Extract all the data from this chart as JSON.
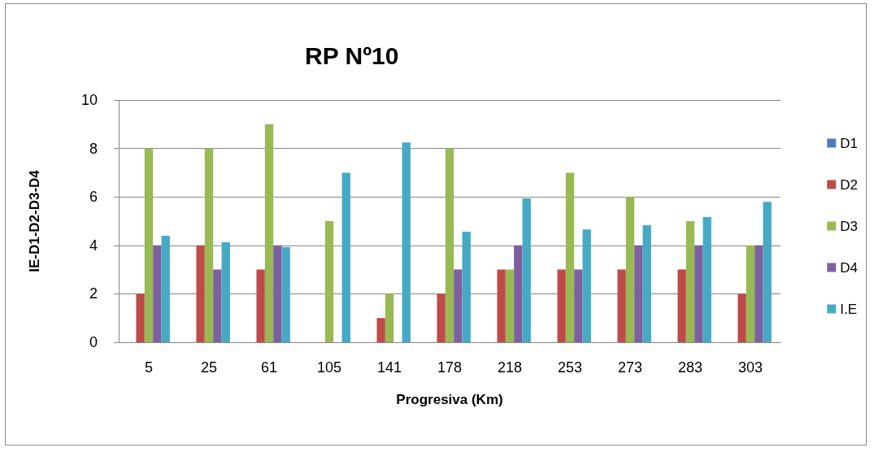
{
  "chart_data": {
    "type": "bar",
    "title": "RP Nº10",
    "xlabel": "Progresiva (Km)",
    "ylabel": "IE-D1-D2-D3-D4",
    "categories": [
      "5",
      "25",
      "61",
      "105",
      "141",
      "178",
      "218",
      "253",
      "273",
      "283",
      "303"
    ],
    "series": [
      {
        "name": "D1",
        "color": "#4a7ebb",
        "values": [
          0,
          0,
          0,
          0,
          0,
          0,
          0,
          0,
          0,
          0,
          0
        ]
      },
      {
        "name": "D2",
        "color": "#be4b48",
        "values": [
          2,
          4,
          3,
          0,
          1,
          2,
          3,
          3,
          3,
          3,
          2
        ]
      },
      {
        "name": "D3",
        "color": "#98b954",
        "values": [
          8,
          8,
          9,
          5,
          2,
          8,
          3,
          7,
          6,
          5,
          4
        ]
      },
      {
        "name": "D4",
        "color": "#7d60a0",
        "values": [
          4,
          3,
          4,
          0,
          0,
          3,
          4,
          3,
          4,
          4,
          4
        ]
      },
      {
        "name": "I.E",
        "color": "#46aac5",
        "values": [
          4.4,
          4.13,
          3.93,
          7.0,
          8.25,
          4.56,
          5.94,
          4.66,
          4.83,
          5.17,
          5.8
        ]
      }
    ],
    "ylim": [
      0,
      10
    ],
    "yticks": [
      0,
      2,
      4,
      6,
      8,
      10
    ],
    "grid": "y",
    "legend": "right"
  }
}
